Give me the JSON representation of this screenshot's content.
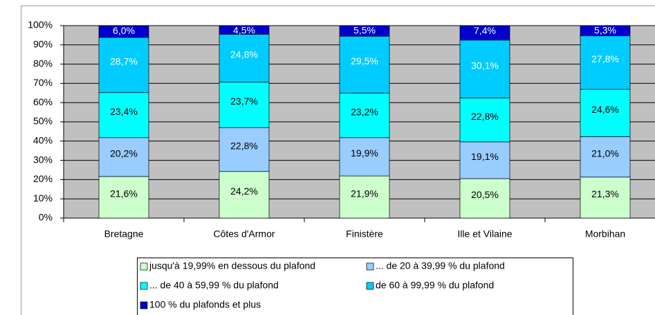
{
  "chart_data": {
    "type": "stacked_bar_percent",
    "categories": [
      "Bretagne",
      "Côtes d'Armor",
      "Finistère",
      "Ille et Vilaine",
      "Morbihan"
    ],
    "series": [
      {
        "name": "jusqu'à 19,99% en dessous du plafond",
        "color": "#ccffcc",
        "label_color": "#000000",
        "values": [
          21.6,
          24.2,
          21.9,
          20.5,
          21.3
        ],
        "value_labels": [
          "21,6%",
          "24,2%",
          "21,9%",
          "20,5%",
          "21,3%"
        ]
      },
      {
        "name": "... de 20 à 39,99 % du plafond",
        "color": "#99ccff",
        "label_color": "#000000",
        "values": [
          20.2,
          22.8,
          19.9,
          19.1,
          21.0
        ],
        "value_labels": [
          "20,2%",
          "22,8%",
          "19,9%",
          "19,1%",
          "21,0%"
        ]
      },
      {
        "name": "... de 40 à 59,99 % du plafond",
        "color": "#00ffff",
        "label_color": "#000000",
        "values": [
          23.4,
          23.7,
          23.2,
          22.8,
          24.6
        ],
        "value_labels": [
          "23,4%",
          "23,7%",
          "23,2%",
          "22,8%",
          "24,6%"
        ]
      },
      {
        "name": "de 60 à 99,99 % du plafond",
        "color": "#00ccff",
        "label_color": "#ffffff",
        "values": [
          28.7,
          24.8,
          29.5,
          30.1,
          27.8
        ],
        "value_labels": [
          "28,7%",
          "24,8%",
          "29,5%",
          "30,1%",
          "27,8%"
        ]
      },
      {
        "name": "100 % du plafonds et plus",
        "color": "#0000cc",
        "label_color": "#ffffff",
        "values": [
          6.0,
          4.5,
          5.5,
          7.4,
          5.3
        ],
        "value_labels": [
          "6,0%",
          "4,5%",
          "5,5%",
          "7,4%",
          "5,3%"
        ]
      }
    ],
    "ylim": [
      0,
      100
    ],
    "yticks": [
      {
        "value": 0,
        "label": "0%"
      },
      {
        "value": 10,
        "label": "10%"
      },
      {
        "value": 20,
        "label": "20%"
      },
      {
        "value": 30,
        "label": "30%"
      },
      {
        "value": 40,
        "label": "40%"
      },
      {
        "value": 50,
        "label": "50%"
      },
      {
        "value": 60,
        "label": "60%"
      },
      {
        "value": 70,
        "label": "70%"
      },
      {
        "value": 80,
        "label": "80%"
      },
      {
        "value": 90,
        "label": "90%"
      },
      {
        "value": 100,
        "label": "100%"
      }
    ],
    "grid": true,
    "legend": "bottom"
  }
}
